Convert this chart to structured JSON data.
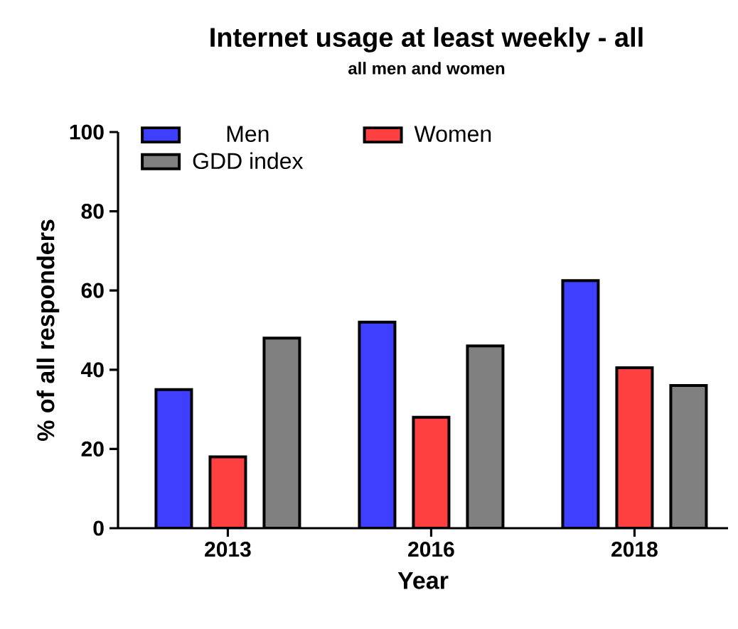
{
  "chart_data": {
    "type": "bar",
    "title": "Internet usage at least weekly - all",
    "subtitle": "all men and women",
    "xlabel": "Year",
    "ylabel": "% of all responders",
    "categories": [
      "2013",
      "2016",
      "2018"
    ],
    "series": [
      {
        "name": "Men",
        "color": "#3f3fff",
        "values": [
          35,
          52,
          62.5
        ]
      },
      {
        "name": "Women",
        "color": "#ff4040",
        "values": [
          18,
          28,
          40.5
        ]
      },
      {
        "name": "GDD index",
        "color": "#808080",
        "values": [
          48,
          46,
          36
        ]
      }
    ],
    "ylim": [
      0,
      100
    ],
    "yticks": [
      0,
      20,
      40,
      60,
      80,
      100
    ],
    "legend": "top left"
  }
}
